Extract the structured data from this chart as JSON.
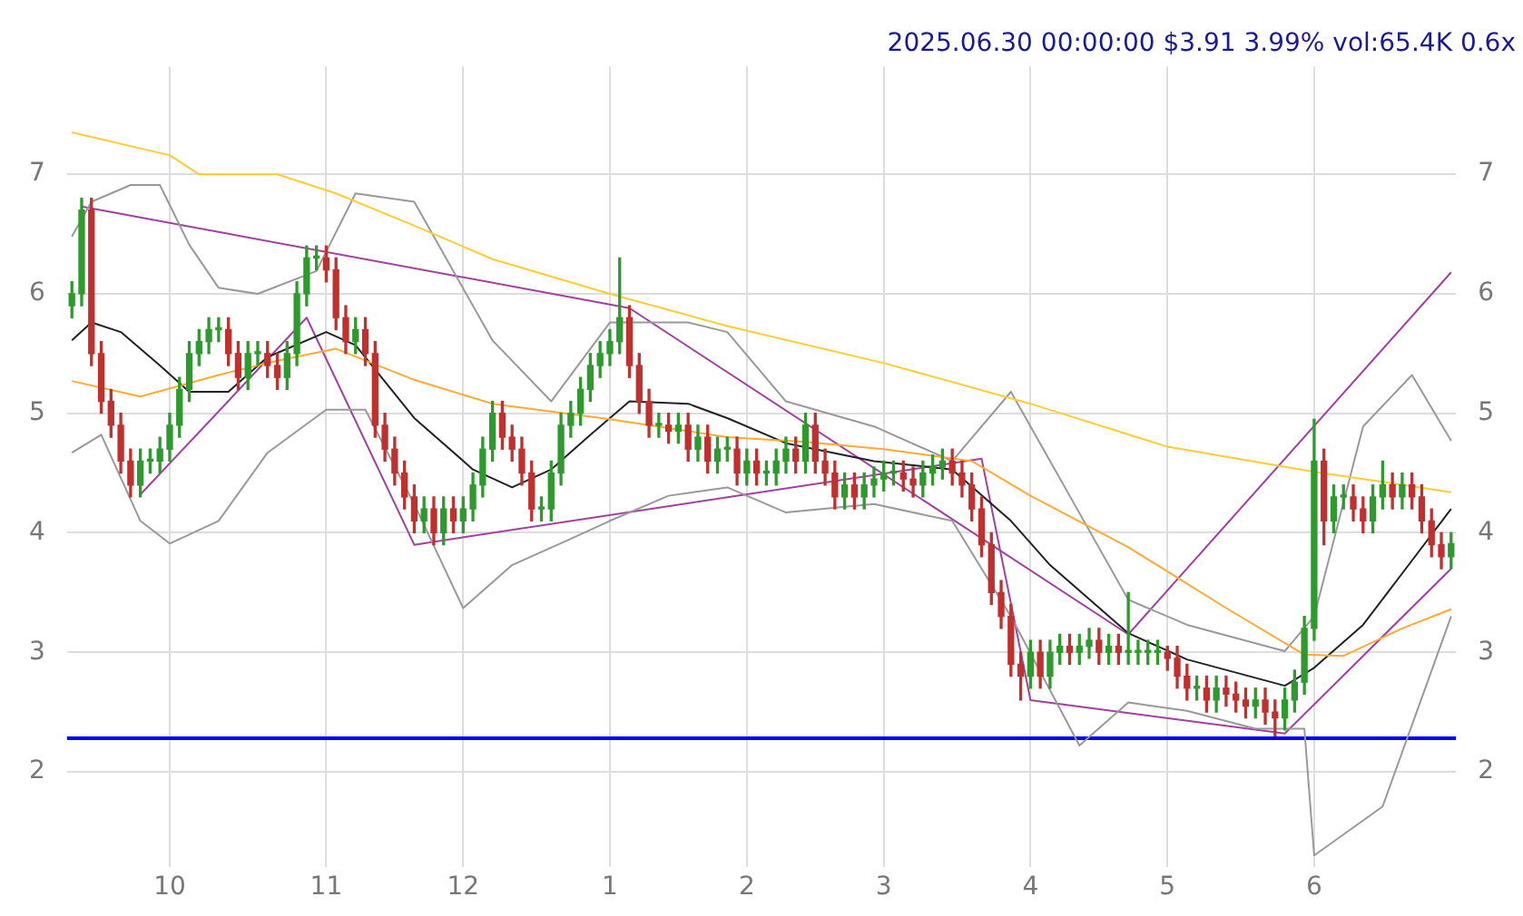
{
  "chart_data": {
    "type": "candlestick",
    "title": "2025.06.30 00:00:00 $3.91 3.99% vol:65.4K 0.6x",
    "categories": [
      null,
      null,
      null,
      null,
      null,
      null,
      null,
      null,
      null,
      null,
      "10",
      null,
      null,
      null,
      null,
      null,
      null,
      null,
      null,
      null,
      null,
      null,
      null,
      null,
      null,
      null,
      "11",
      null,
      null,
      null,
      null,
      null,
      null,
      null,
      null,
      null,
      null,
      null,
      null,
      null,
      "12",
      null,
      null,
      null,
      null,
      null,
      null,
      null,
      null,
      null,
      null,
      null,
      null,
      null,
      null,
      "1",
      null,
      null,
      null,
      null,
      null,
      null,
      null,
      null,
      null,
      null,
      null,
      null,
      null,
      "2",
      null,
      null,
      null,
      null,
      null,
      null,
      null,
      null,
      null,
      null,
      null,
      null,
      null,
      "3",
      null,
      null,
      null,
      null,
      null,
      null,
      null,
      null,
      null,
      null,
      null,
      null,
      null,
      null,
      "4",
      null,
      null,
      null,
      null,
      null,
      null,
      null,
      null,
      null,
      null,
      null,
      null,
      null,
      "5",
      null,
      null,
      null,
      null,
      null,
      null,
      null,
      null,
      null,
      null,
      null,
      null,
      null,
      null,
      "6",
      null,
      null,
      null,
      null,
      null,
      null,
      null,
      null,
      null,
      null,
      null,
      null,
      null,
      null
    ],
    "ohlc": [
      [
        5.9,
        6.1,
        5.8,
        6.0
      ],
      [
        6.0,
        6.8,
        5.9,
        6.7
      ],
      [
        6.7,
        6.8,
        5.4,
        5.5
      ],
      [
        5.5,
        5.6,
        5.0,
        5.1
      ],
      [
        5.1,
        5.2,
        4.8,
        4.9
      ],
      [
        4.9,
        5.0,
        4.5,
        4.6
      ],
      [
        4.6,
        4.7,
        4.3,
        4.4
      ],
      [
        4.4,
        4.7,
        4.3,
        4.6
      ],
      [
        4.6,
        4.7,
        4.5,
        4.6
      ],
      [
        4.6,
        4.8,
        4.5,
        4.7
      ],
      [
        4.7,
        5.0,
        4.6,
        4.9
      ],
      [
        4.9,
        5.3,
        4.8,
        5.2
      ],
      [
        5.2,
        5.6,
        5.1,
        5.5
      ],
      [
        5.5,
        5.7,
        5.4,
        5.6
      ],
      [
        5.6,
        5.8,
        5.5,
        5.7
      ],
      [
        5.7,
        5.8,
        5.6,
        5.7
      ],
      [
        5.7,
        5.8,
        5.4,
        5.5
      ],
      [
        5.5,
        5.6,
        5.2,
        5.3
      ],
      [
        5.3,
        5.6,
        5.2,
        5.5
      ],
      [
        5.5,
        5.6,
        5.4,
        5.5
      ],
      [
        5.5,
        5.6,
        5.3,
        5.4
      ],
      [
        5.4,
        5.5,
        5.2,
        5.3
      ],
      [
        5.3,
        5.6,
        5.2,
        5.5
      ],
      [
        5.5,
        6.1,
        5.4,
        6.0
      ],
      [
        6.0,
        6.4,
        5.9,
        6.3
      ],
      [
        6.3,
        6.4,
        6.2,
        6.3
      ],
      [
        6.3,
        6.4,
        6.1,
        6.2
      ],
      [
        6.2,
        6.3,
        5.7,
        5.8
      ],
      [
        5.8,
        5.9,
        5.5,
        5.6
      ],
      [
        5.6,
        5.8,
        5.5,
        5.7
      ],
      [
        5.7,
        5.8,
        5.4,
        5.5
      ],
      [
        5.5,
        5.6,
        4.8,
        4.9
      ],
      [
        4.9,
        5.0,
        4.6,
        4.7
      ],
      [
        4.7,
        4.8,
        4.4,
        4.5
      ],
      [
        4.5,
        4.6,
        4.2,
        4.3
      ],
      [
        4.3,
        4.4,
        4.0,
        4.1
      ],
      [
        4.1,
        4.3,
        4.0,
        4.2
      ],
      [
        4.2,
        4.3,
        3.9,
        4.0
      ],
      [
        4.0,
        4.3,
        3.9,
        4.2
      ],
      [
        4.2,
        4.3,
        4.0,
        4.1
      ],
      [
        4.1,
        4.3,
        4.0,
        4.2
      ],
      [
        4.2,
        4.5,
        4.1,
        4.4
      ],
      [
        4.4,
        4.8,
        4.3,
        4.7
      ],
      [
        4.7,
        5.1,
        4.6,
        5.0
      ],
      [
        5.0,
        5.1,
        4.7,
        4.8
      ],
      [
        4.8,
        4.9,
        4.6,
        4.7
      ],
      [
        4.7,
        4.8,
        4.4,
        4.5
      ],
      [
        4.5,
        4.6,
        4.1,
        4.2
      ],
      [
        4.2,
        4.3,
        4.1,
        4.2
      ],
      [
        4.2,
        4.6,
        4.1,
        4.5
      ],
      [
        4.5,
        5.0,
        4.4,
        4.9
      ],
      [
        4.9,
        5.1,
        4.8,
        5.0
      ],
      [
        5.0,
        5.3,
        4.9,
        5.2
      ],
      [
        5.2,
        5.5,
        5.1,
        5.4
      ],
      [
        5.4,
        5.6,
        5.3,
        5.5
      ],
      [
        5.5,
        5.7,
        5.4,
        5.6
      ],
      [
        5.6,
        6.3,
        5.5,
        5.8
      ],
      [
        5.8,
        5.9,
        5.3,
        5.4
      ],
      [
        5.4,
        5.5,
        5.0,
        5.1
      ],
      [
        5.1,
        5.2,
        4.8,
        4.9
      ],
      [
        4.9,
        5.0,
        4.8,
        4.9
      ],
      [
        4.9,
        5.0,
        4.75,
        4.85
      ],
      [
        4.85,
        5.0,
        4.75,
        4.9
      ],
      [
        4.9,
        5.0,
        4.6,
        4.7
      ],
      [
        4.7,
        4.9,
        4.6,
        4.8
      ],
      [
        4.8,
        4.9,
        4.5,
        4.6
      ],
      [
        4.6,
        4.8,
        4.5,
        4.7
      ],
      [
        4.7,
        4.8,
        4.6,
        4.7
      ],
      [
        4.7,
        4.8,
        4.4,
        4.5
      ],
      [
        4.5,
        4.7,
        4.4,
        4.6
      ],
      [
        4.6,
        4.7,
        4.4,
        4.5
      ],
      [
        4.5,
        4.6,
        4.4,
        4.5
      ],
      [
        4.5,
        4.7,
        4.4,
        4.6
      ],
      [
        4.6,
        4.8,
        4.5,
        4.7
      ],
      [
        4.7,
        4.8,
        4.5,
        4.6
      ],
      [
        4.6,
        5.0,
        4.5,
        4.9
      ],
      [
        4.9,
        5.0,
        4.5,
        4.6
      ],
      [
        4.6,
        4.7,
        4.4,
        4.5
      ],
      [
        4.5,
        4.6,
        4.2,
        4.3
      ],
      [
        4.3,
        4.5,
        4.2,
        4.4
      ],
      [
        4.4,
        4.5,
        4.2,
        4.3
      ],
      [
        4.3,
        4.5,
        4.2,
        4.4
      ],
      [
        4.4,
        4.55,
        4.3,
        4.45
      ],
      [
        4.45,
        4.6,
        4.35,
        4.5
      ],
      [
        4.5,
        4.6,
        4.4,
        4.5
      ],
      [
        4.5,
        4.6,
        4.35,
        4.45
      ],
      [
        4.45,
        4.55,
        4.3,
        4.4
      ],
      [
        4.4,
        4.6,
        4.3,
        4.5
      ],
      [
        4.5,
        4.65,
        4.4,
        4.55
      ],
      [
        4.55,
        4.7,
        4.45,
        4.6
      ],
      [
        4.6,
        4.7,
        4.4,
        4.5
      ],
      [
        4.5,
        4.6,
        4.3,
        4.4
      ],
      [
        4.4,
        4.5,
        4.1,
        4.2
      ],
      [
        4.2,
        4.3,
        3.8,
        3.9
      ],
      [
        3.9,
        4.0,
        3.4,
        3.5
      ],
      [
        3.5,
        3.6,
        3.2,
        3.3
      ],
      [
        3.3,
        3.4,
        2.8,
        2.9
      ],
      [
        2.9,
        3.0,
        2.6,
        2.8
      ],
      [
        2.8,
        3.1,
        2.7,
        3.0
      ],
      [
        3.0,
        3.1,
        2.7,
        2.8
      ],
      [
        2.8,
        3.1,
        2.7,
        3.0
      ],
      [
        3.0,
        3.15,
        2.9,
        3.05
      ],
      [
        3.05,
        3.15,
        2.9,
        3.0
      ],
      [
        3.0,
        3.15,
        2.9,
        3.05
      ],
      [
        3.05,
        3.2,
        2.95,
        3.1
      ],
      [
        3.1,
        3.2,
        2.9,
        3.0
      ],
      [
        3.0,
        3.15,
        2.9,
        3.05
      ],
      [
        3.05,
        3.15,
        2.9,
        3.0
      ],
      [
        3.0,
        3.5,
        2.9,
        3.0
      ],
      [
        3.0,
        3.1,
        2.9,
        3.0
      ],
      [
        3.0,
        3.1,
        2.9,
        3.0
      ],
      [
        3.0,
        3.1,
        2.9,
        3.0
      ],
      [
        3.0,
        3.05,
        2.85,
        2.95
      ],
      [
        2.95,
        3.05,
        2.7,
        2.8
      ],
      [
        2.8,
        2.9,
        2.6,
        2.7
      ],
      [
        2.7,
        2.8,
        2.6,
        2.7
      ],
      [
        2.7,
        2.8,
        2.5,
        2.6
      ],
      [
        2.6,
        2.8,
        2.5,
        2.7
      ],
      [
        2.7,
        2.8,
        2.55,
        2.65
      ],
      [
        2.65,
        2.75,
        2.5,
        2.6
      ],
      [
        2.6,
        2.7,
        2.45,
        2.55
      ],
      [
        2.55,
        2.7,
        2.45,
        2.6
      ],
      [
        2.6,
        2.7,
        2.4,
        2.5
      ],
      [
        2.5,
        2.6,
        2.3,
        2.45
      ],
      [
        2.45,
        2.7,
        2.35,
        2.6
      ],
      [
        2.6,
        2.85,
        2.5,
        2.75
      ],
      [
        2.75,
        3.3,
        2.65,
        3.2
      ],
      [
        3.2,
        4.95,
        3.1,
        4.6
      ],
      [
        4.6,
        4.7,
        3.9,
        4.1
      ],
      [
        4.1,
        4.4,
        4.0,
        4.3
      ],
      [
        4.3,
        4.4,
        4.2,
        4.3
      ],
      [
        4.3,
        4.4,
        4.1,
        4.2
      ],
      [
        4.2,
        4.3,
        4.0,
        4.1
      ],
      [
        4.1,
        4.4,
        4.0,
        4.3
      ],
      [
        4.3,
        4.6,
        4.2,
        4.4
      ],
      [
        4.4,
        4.5,
        4.2,
        4.3
      ],
      [
        4.3,
        4.5,
        4.2,
        4.4
      ],
      [
        4.4,
        4.5,
        4.2,
        4.3
      ],
      [
        4.3,
        4.4,
        4.0,
        4.1
      ],
      [
        4.1,
        4.2,
        3.8,
        3.9
      ],
      [
        3.9,
        4.0,
        3.7,
        3.8
      ],
      [
        3.8,
        4.0,
        3.7,
        3.91
      ]
    ],
    "series": [
      {
        "type": "line",
        "color": "#ffcc33",
        "values": [
          7.35,
          null,
          null,
          null,
          null,
          null,
          null,
          null,
          null,
          null,
          7.16,
          null,
          null,
          7.0,
          null,
          null,
          null,
          null,
          null,
          null,
          null,
          7.0,
          null,
          null,
          null,
          null,
          null,
          6.84,
          null,
          null,
          null,
          null,
          null,
          null,
          null,
          6.57,
          null,
          null,
          null,
          null,
          null,
          null,
          null,
          6.29,
          null,
          null,
          null,
          null,
          null,
          null,
          null,
          null,
          null,
          null,
          null,
          6.0,
          null,
          null,
          null,
          null,
          null,
          null,
          null,
          null,
          null,
          null,
          null,
          5.73,
          null,
          null,
          null,
          null,
          null,
          null,
          null,
          null,
          null,
          null,
          null,
          null,
          null,
          null,
          null,
          5.42,
          null,
          null,
          null,
          null,
          null,
          null,
          null,
          null,
          null,
          null,
          null,
          null,
          null,
          null,
          5.08,
          null,
          null,
          null,
          null,
          null,
          null,
          null,
          null,
          null,
          null,
          null,
          null,
          null,
          4.72,
          null,
          null,
          null,
          null,
          null,
          null,
          null,
          null,
          null,
          null,
          null,
          null,
          null,
          null,
          4.51,
          null,
          null,
          null,
          null,
          null,
          null,
          null,
          null,
          null,
          null,
          null,
          null,
          null,
          4.34
        ]
      },
      {
        "type": "line",
        "color": "#ffaa33",
        "values": [
          5.27,
          null,
          null,
          null,
          null,
          null,
          null,
          5.14,
          null,
          null,
          null,
          null,
          null,
          null,
          null,
          5.32,
          null,
          null,
          null,
          null,
          null,
          5.44,
          null,
          null,
          null,
          null,
          null,
          5.54,
          null,
          null,
          null,
          null,
          null,
          null,
          null,
          5.28,
          null,
          null,
          null,
          null,
          null,
          null,
          null,
          5.08,
          null,
          null,
          null,
          null,
          null,
          null,
          null,
          null,
          null,
          null,
          null,
          4.95,
          null,
          null,
          null,
          null,
          null,
          null,
          null,
          null,
          null,
          null,
          null,
          4.8,
          null,
          null,
          null,
          null,
          null,
          null,
          null,
          4.76,
          null,
          null,
          null,
          null,
          null,
          null,
          null,
          4.7,
          null,
          null,
          null,
          null,
          null,
          null,
          null,
          null,
          4.6,
          null,
          null,
          null,
          null,
          null,
          4.31,
          null,
          null,
          null,
          null,
          null,
          null,
          null,
          null,
          null,
          3.88,
          null,
          null,
          null,
          null,
          null,
          null,
          null,
          null,
          null,
          3.37,
          null,
          null,
          null,
          null,
          null,
          null,
          null,
          2.98,
          null,
          null,
          null,
          2.97,
          null,
          null,
          null,
          null,
          null,
          3.2,
          null,
          null,
          null,
          null,
          3.36
        ]
      },
      {
        "type": "line",
        "color": "#222222",
        "values": [
          5.61,
          null,
          5.76,
          null,
          null,
          5.68,
          null,
          null,
          null,
          5.4,
          null,
          null,
          5.18,
          null,
          null,
          null,
          5.18,
          null,
          null,
          null,
          5.47,
          null,
          null,
          null,
          null,
          null,
          5.68,
          null,
          null,
          5.57,
          null,
          null,
          null,
          null,
          null,
          4.96,
          null,
          null,
          null,
          null,
          null,
          4.53,
          null,
          null,
          null,
          4.38,
          null,
          null,
          null,
          4.53,
          null,
          null,
          null,
          4.82,
          null,
          null,
          null,
          5.1,
          null,
          null,
          null,
          null,
          null,
          5.08,
          null,
          null,
          null,
          4.96,
          null,
          null,
          null,
          null,
          null,
          4.75,
          null,
          null,
          null,
          null,
          null,
          null,
          null,
          null,
          4.6,
          null,
          null,
          null,
          null,
          null,
          null,
          null,
          4.53,
          null,
          null,
          null,
          null,
          null,
          4.1,
          null,
          null,
          null,
          3.73,
          null,
          null,
          null,
          null,
          null,
          null,
          null,
          3.16,
          null,
          null,
          null,
          null,
          null,
          2.94,
          null,
          null,
          null,
          null,
          null,
          null,
          null,
          null,
          null,
          2.72,
          null,
          null,
          2.87,
          null,
          null,
          null,
          null,
          3.23,
          null,
          null,
          null,
          3.66,
          null,
          null,
          null,
          null,
          4.2
        ]
      },
      {
        "type": "line",
        "color": "#999999",
        "values": [
          6.48,
          null,
          6.77,
          null,
          null,
          null,
          6.91,
          null,
          null,
          6.91,
          null,
          null,
          6.41,
          null,
          null,
          6.05,
          null,
          null,
          null,
          6.0,
          null,
          null,
          null,
          null,
          null,
          6.19,
          null,
          null,
          null,
          6.84,
          null,
          null,
          null,
          null,
          null,
          6.77,
          null,
          null,
          null,
          6.19,
          null,
          null,
          null,
          5.61,
          null,
          null,
          null,
          null,
          null,
          5.1,
          null,
          null,
          null,
          null,
          null,
          5.76,
          null,
          null,
          null,
          null,
          null,
          null,
          null,
          5.76,
          null,
          null,
          null,
          5.68,
          null,
          null,
          null,
          null,
          null,
          5.1,
          null,
          null,
          null,
          null,
          null,
          null,
          null,
          null,
          4.89,
          null,
          null,
          null,
          null,
          null,
          null,
          null,
          4.6,
          null,
          null,
          null,
          null,
          null,
          5.18,
          null,
          null,
          null,
          null,
          null,
          4.31,
          null,
          null,
          null,
          null,
          null,
          3.44,
          null,
          null,
          null,
          null,
          null,
          3.23,
          null,
          null,
          null,
          null,
          null,
          null,
          null,
          null,
          null,
          3.01,
          null,
          null,
          3.3,
          null,
          null,
          null,
          null,
          4.89,
          null,
          null,
          null,
          null,
          5.32,
          null,
          null,
          null,
          4.77
        ]
      },
      {
        "type": "line",
        "color": "#999999",
        "values": [
          4.67,
          null,
          null,
          4.82,
          null,
          null,
          null,
          4.1,
          null,
          null,
          3.91,
          null,
          null,
          null,
          null,
          4.1,
          null,
          null,
          null,
          null,
          4.67,
          null,
          null,
          null,
          null,
          null,
          5.03,
          null,
          null,
          null,
          5.03,
          null,
          null,
          null,
          null,
          4.24,
          null,
          null,
          null,
          null,
          3.37,
          null,
          null,
          null,
          null,
          3.73,
          null,
          null,
          null,
          null,
          null,
          3.95,
          null,
          null,
          null,
          4.1,
          null,
          null,
          null,
          null,
          null,
          4.31,
          null,
          null,
          null,
          null,
          null,
          4.38,
          null,
          null,
          null,
          null,
          null,
          4.17,
          null,
          null,
          null,
          null,
          null,
          null,
          null,
          null,
          4.24,
          null,
          null,
          null,
          null,
          null,
          null,
          null,
          4.1,
          null,
          null,
          null,
          null,
          null,
          3.3,
          null,
          null,
          null,
          null,
          null,
          null,
          2.22,
          null,
          null,
          null,
          null,
          2.58,
          null,
          null,
          null,
          null,
          null,
          2.51,
          null,
          null,
          null,
          null,
          null,
          null,
          2.36,
          null,
          null,
          null,
          null,
          2.36,
          1.3,
          null,
          null,
          null,
          null,
          null,
          null,
          1.71,
          null,
          null,
          null,
          null,
          null,
          null,
          3.3
        ]
      },
      {
        "type": "line",
        "color": "#a040a0",
        "values": [
          null,
          6.73,
          null,
          null,
          null,
          null,
          null,
          null,
          null,
          null,
          null,
          null,
          null,
          null,
          null,
          null,
          null,
          null,
          null,
          null,
          null,
          null,
          null,
          null,
          null,
          null,
          null,
          null,
          null,
          null,
          null,
          null,
          null,
          null,
          null,
          null,
          null,
          null,
          null,
          null,
          null,
          null,
          null,
          null,
          null,
          null,
          null,
          null,
          null,
          null,
          null,
          null,
          null,
          null,
          null,
          null,
          null,
          5.88,
          null,
          null,
          null,
          null,
          null,
          null,
          null,
          null,
          null,
          null,
          null,
          null,
          null,
          null,
          null,
          null,
          null,
          null,
          null,
          null,
          null,
          null,
          null,
          null,
          null,
          null,
          null,
          null,
          null,
          null,
          null,
          null,
          null,
          null,
          null,
          null,
          null,
          null,
          null,
          null,
          null,
          null,
          null,
          null,
          null,
          null,
          null,
          null,
          null,
          null,
          3.15,
          null,
          null,
          null,
          null,
          null,
          null,
          null,
          null,
          null,
          null,
          null,
          null,
          null,
          null,
          null,
          null,
          null,
          null,
          null,
          null,
          null,
          null,
          null,
          null,
          null,
          null,
          null,
          null,
          null,
          null,
          null,
          null,
          6.18
        ]
      },
      {
        "type": "line",
        "color": "#a040a0",
        "values": [
          null,
          null,
          null,
          null,
          null,
          null,
          null,
          4.32,
          null,
          null,
          null,
          null,
          null,
          null,
          null,
          null,
          null,
          null,
          null,
          null,
          null,
          null,
          null,
          null,
          5.8,
          null,
          null,
          null,
          null,
          null,
          null,
          null,
          null,
          null,
          null,
          3.9,
          null,
          null,
          null,
          null,
          null,
          null,
          null,
          null,
          null,
          null,
          null,
          null,
          null,
          null,
          null,
          null,
          null,
          null,
          null,
          null,
          null,
          null,
          null,
          null,
          null,
          null,
          null,
          null,
          null,
          null,
          null,
          null,
          null,
          null,
          null,
          null,
          null,
          null,
          null,
          null,
          null,
          null,
          null,
          null,
          null,
          null,
          null,
          null,
          null,
          null,
          null,
          null,
          null,
          null,
          null,
          null,
          null,
          4.62,
          null,
          null,
          null,
          null,
          2.6,
          null,
          null,
          null,
          null,
          null,
          null,
          null,
          null,
          null,
          null,
          null,
          null,
          null,
          null,
          null,
          null,
          null,
          null,
          null,
          null,
          null,
          null,
          null,
          null,
          null,
          2.32,
          null,
          null,
          null,
          null,
          null,
          null,
          null,
          null,
          null,
          null,
          null,
          null,
          null,
          null,
          null,
          null,
          3.7
        ]
      }
    ],
    "ylim": [
      1.2,
      7.9
    ],
    "yticks": [
      2,
      3,
      4,
      5,
      6,
      7
    ],
    "y2lim": [
      1.2,
      7.9
    ],
    "y2ticks": [
      2,
      3,
      4,
      5,
      6,
      7
    ],
    "ref_lines": [
      {
        "axis": "y",
        "value": 2.28,
        "color": "#0000ff"
      }
    ],
    "grid": true,
    "legend": false,
    "marker": "none"
  }
}
